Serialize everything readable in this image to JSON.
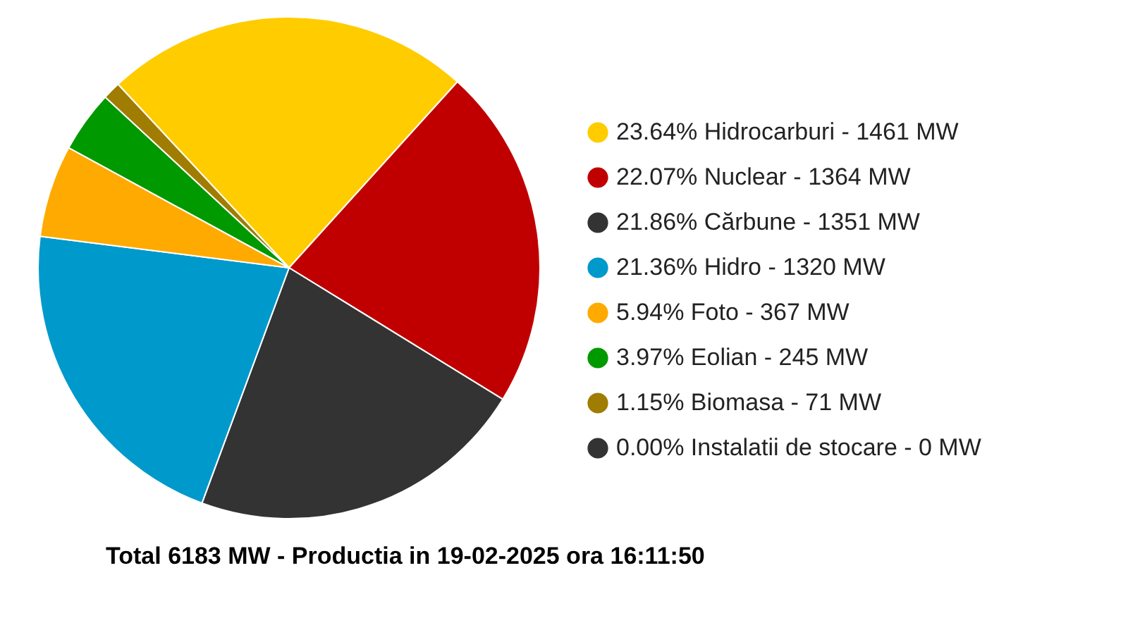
{
  "chart_data": {
    "type": "pie",
    "title": "Total 6183 MW - Productia in 19-02-2025 ora 16:11:50",
    "categories": [
      "23.64% Hidrocarburi - 1461 MW",
      "22.07% Nuclear - 1364 MW",
      "21.86% Cărbune - 1351 MW",
      "21.36% Hidro - 1320 MW",
      "5.94% Foto - 367 MW",
      "3.97% Eolian - 245 MW",
      "1.15% Biomasa - 71 MW",
      "0.00% Instalatii de stocare - 0 MW"
    ],
    "values": [
      23.64,
      22.07,
      21.86,
      21.36,
      5.94,
      3.97,
      1.15,
      0
    ],
    "colors": [
      "#ffcc00",
      "#c00000",
      "#333333",
      "#0099cc",
      "#ffaa00",
      "#009900",
      "#a07c00",
      "#333333"
    ],
    "legend": "right"
  }
}
